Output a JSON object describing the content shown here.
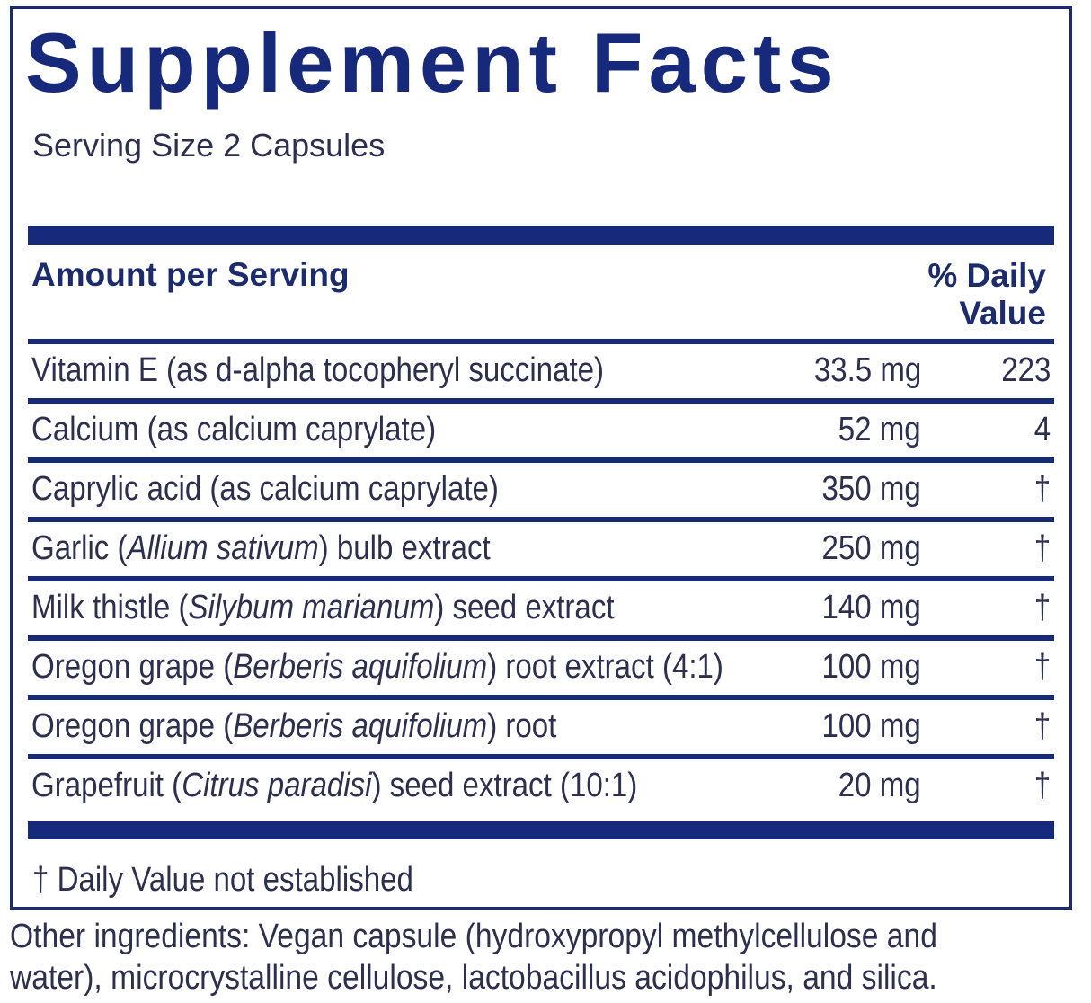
{
  "title": "Supplement Facts",
  "serving_size": "Serving Size 2 Capsules",
  "header": {
    "amount_per_serving": "Amount per Serving",
    "daily_value_line1": "% Daily",
    "daily_value_line2": "Value"
  },
  "rows": [
    {
      "pre": "Vitamin E (as d-alpha tocopheryl succinate)",
      "ital": "",
      "post": "",
      "amount": "33.5 mg",
      "dv": "223"
    },
    {
      "pre": "Calcium (as calcium caprylate)",
      "ital": "",
      "post": "",
      "amount": "52 mg",
      "dv": "4"
    },
    {
      "pre": "Caprylic acid (as calcium caprylate)",
      "ital": "",
      "post": "",
      "amount": "350 mg",
      "dv": "†"
    },
    {
      "pre": "Garlic (",
      "ital": "Allium sativum",
      "post": ") bulb extract",
      "amount": "250 mg",
      "dv": "†"
    },
    {
      "pre": "Milk thistle (",
      "ital": "Silybum marianum",
      "post": ") seed extract",
      "amount": "140 mg",
      "dv": "†"
    },
    {
      "pre": "Oregon grape (",
      "ital": "Berberis aquifolium",
      "post": ") root extract (4:1)",
      "amount": "100 mg",
      "dv": "†"
    },
    {
      "pre": "Oregon grape (",
      "ital": "Berberis aquifolium",
      "post": ") root",
      "amount": "100 mg",
      "dv": "†"
    },
    {
      "pre": "Grapefruit (",
      "ital": "Citrus paradisi",
      "post": ") seed extract (10:1)",
      "amount": "20 mg",
      "dv": "†"
    }
  ],
  "footnote": "† Daily Value not established",
  "other_ingredients": {
    "line1": "Other ingredients: Vegan capsule (hydroxypropyl methylcellulose and",
    "line2": "water), microcrystalline cellulose, lactobacillus acidophilus, and silica."
  },
  "colors": {
    "accent": "#17297a",
    "text": "#2c2f4e"
  }
}
